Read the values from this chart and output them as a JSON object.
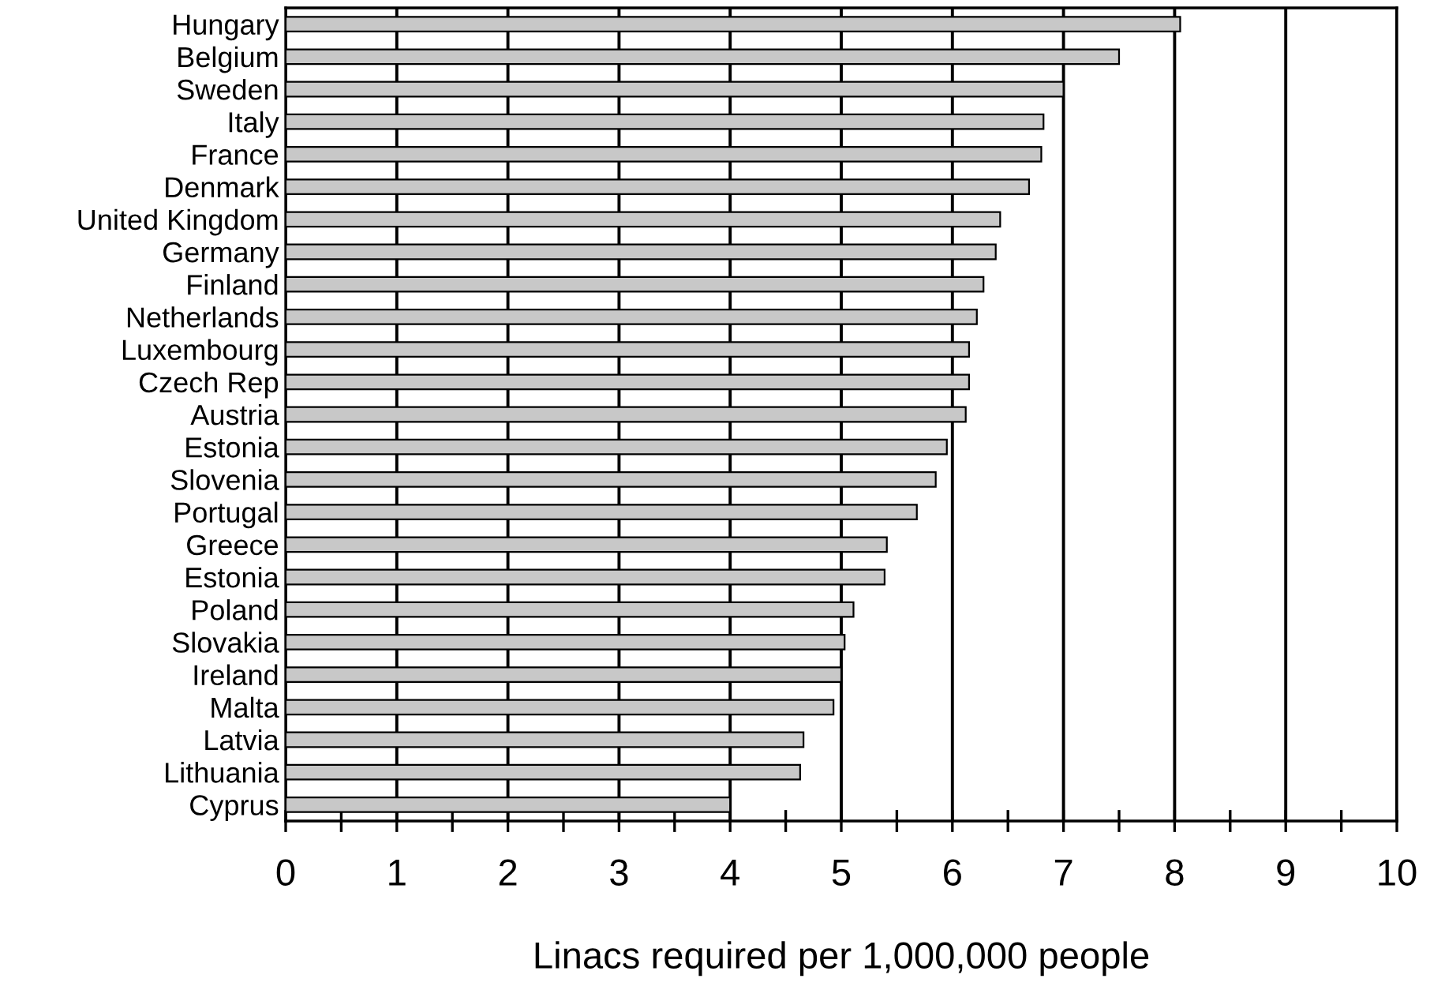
{
  "chart_data": {
    "type": "bar",
    "orientation": "horizontal",
    "xlabel": "Linacs required per 1,000,000 people",
    "categories": [
      "Hungary",
      "Belgium",
      "Sweden",
      "Italy",
      "France",
      "Denmark",
      "United Kingdom",
      "Germany",
      "Finland",
      "Netherlands",
      "Luxembourg",
      "Czech Rep",
      "Austria",
      "Estonia",
      "Slovenia",
      "Portugal",
      "Greece",
      "Estonia",
      "Poland",
      "Slovakia",
      "Ireland",
      "Malta",
      "Latvia",
      "Lithuania",
      "Cyprus"
    ],
    "values": [
      8.05,
      7.5,
      7.0,
      6.82,
      6.8,
      6.69,
      6.43,
      6.39,
      6.28,
      6.22,
      6.15,
      6.15,
      6.12,
      5.95,
      5.85,
      5.68,
      5.41,
      5.39,
      5.11,
      5.03,
      5.0,
      4.93,
      4.66,
      4.63,
      4.0
    ],
    "color": "#c8c8c8",
    "xlim": [
      0,
      10
    ],
    "xticks": [
      0,
      {
        "value": 0.5,
        "label": null
      },
      1,
      {
        "value": 1.5,
        "label": null
      },
      2,
      {
        "value": 2.5,
        "label": null
      },
      3,
      {
        "value": 3.5,
        "label": null
      },
      4,
      {
        "value": 4.5,
        "label": null
      },
      5,
      {
        "value": 5.5,
        "label": null
      },
      6,
      {
        "value": 6.5,
        "label": null
      },
      7,
      {
        "value": 7.5,
        "label": null
      },
      8,
      {
        "value": 8.5,
        "label": null
      },
      9,
      {
        "value": 9.5,
        "label": null
      },
      10
    ],
    "grid": "x",
    "legend": false
  }
}
